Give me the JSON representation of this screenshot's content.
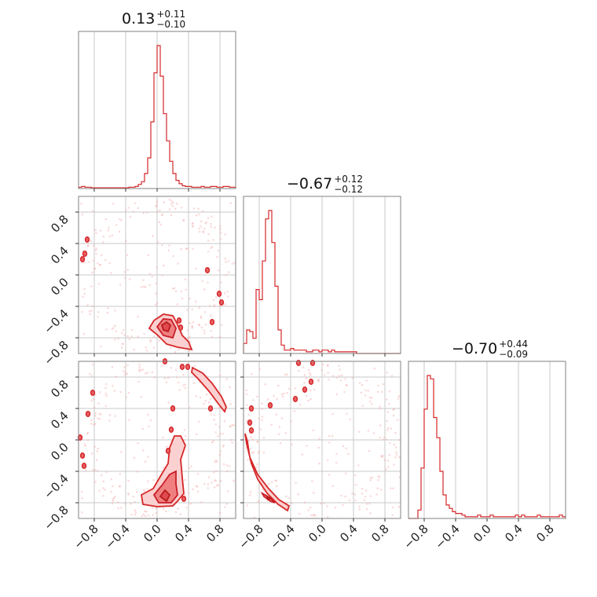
{
  "chart_data": {
    "type": "corner",
    "color": "#d62728",
    "parameters": [
      {
        "title_value": "0.13",
        "title_plus": "+0.11",
        "title_minus": "−0.10",
        "range": [
          -1.0,
          1.0
        ]
      },
      {
        "title_value": "−0.67",
        "title_plus": "+0.12",
        "title_minus": "−0.12",
        "range": [
          -1.0,
          1.0
        ]
      },
      {
        "title_value": "−0.70",
        "title_plus": "+0.44",
        "title_minus": "−0.09",
        "range": [
          -1.0,
          1.0
        ]
      }
    ],
    "tick_values": [
      -0.8,
      -0.4,
      0.0,
      0.4,
      0.8
    ],
    "tick_labels": [
      "−0.8",
      "−0.4",
      "0.0",
      "0.4",
      "0.8"
    ],
    "histograms": [
      {
        "param": 0,
        "bin_edges_start": -1.0,
        "bin_width": 0.04,
        "counts": [
          2,
          3,
          2,
          2,
          1,
          1,
          1,
          1,
          1,
          1,
          1,
          1,
          1,
          1,
          1,
          1,
          2,
          2,
          3,
          6,
          10,
          22,
          45,
          98,
          170,
          210,
          165,
          110,
          70,
          40,
          22,
          12,
          7,
          4,
          3,
          3,
          2,
          2,
          2,
          3,
          2,
          2,
          3,
          3,
          2,
          2,
          3,
          3,
          2,
          2
        ]
      },
      {
        "param": 1,
        "bin_edges_start": -1.0,
        "bin_width": 0.04,
        "counts": [
          6,
          14,
          13,
          9,
          38,
          32,
          55,
          80,
          85,
          66,
          40,
          14,
          5,
          2,
          2,
          3,
          2,
          2,
          2,
          2,
          1,
          1,
          2,
          2,
          1,
          2,
          2,
          1,
          2,
          1,
          1,
          1,
          1,
          1,
          1,
          1,
          0,
          0,
          0,
          0,
          0,
          0,
          0,
          0,
          0,
          0,
          0,
          0,
          0,
          0
        ]
      },
      {
        "param": 2,
        "bin_edges_start": -1.0,
        "bin_width": 0.04,
        "counts": [
          0,
          0,
          0,
          5,
          30,
          65,
          85,
          83,
          60,
          48,
          28,
          14,
          8,
          6,
          4,
          3,
          3,
          2,
          1,
          1,
          1,
          1,
          2,
          1,
          1,
          1,
          2,
          1,
          1,
          1,
          1,
          1,
          1,
          1,
          2,
          1,
          2,
          1,
          1,
          1,
          1,
          2,
          1,
          1,
          1,
          1,
          1,
          1,
          2,
          1
        ]
      }
    ],
    "contour_panels": [
      {
        "x_param": 0,
        "y_param": 1,
        "outer": [
          [
            -0.1,
            -0.68
          ],
          [
            -0.04,
            -0.58
          ],
          [
            0.08,
            -0.5
          ],
          [
            0.2,
            -0.52
          ],
          [
            0.26,
            -0.63
          ],
          [
            0.32,
            -0.77
          ],
          [
            0.4,
            -0.85
          ],
          [
            0.44,
            -0.95
          ],
          [
            0.26,
            -0.92
          ],
          [
            0.12,
            -0.88
          ],
          [
            0.0,
            -0.76
          ]
        ],
        "middle": [
          [
            0.0,
            -0.66
          ],
          [
            0.08,
            -0.56
          ],
          [
            0.18,
            -0.57
          ],
          [
            0.24,
            -0.68
          ],
          [
            0.2,
            -0.8
          ],
          [
            0.08,
            -0.77
          ]
        ],
        "inner": [
          [
            0.06,
            -0.64
          ],
          [
            0.12,
            -0.6
          ],
          [
            0.17,
            -0.64
          ],
          [
            0.14,
            -0.72
          ],
          [
            0.08,
            -0.7
          ]
        ],
        "islands": [
          [
            -0.92,
            0.27
          ],
          [
            -0.95,
            0.2
          ],
          [
            -0.89,
            0.45
          ],
          [
            0.28,
            -0.58
          ],
          [
            0.3,
            -0.67
          ],
          [
            0.64,
            0.06
          ],
          [
            0.7,
            -0.6
          ],
          [
            0.79,
            -0.24
          ],
          [
            0.82,
            -0.35
          ]
        ]
      },
      {
        "x_param": 0,
        "y_param": 2,
        "outer": [
          [
            -0.2,
            -0.7
          ],
          [
            -0.05,
            -0.62
          ],
          [
            0.05,
            -0.45
          ],
          [
            0.14,
            -0.3
          ],
          [
            0.16,
            -0.1
          ],
          [
            0.22,
            0.05
          ],
          [
            0.3,
            0.05
          ],
          [
            0.36,
            -0.07
          ],
          [
            0.3,
            -0.25
          ],
          [
            0.32,
            -0.48
          ],
          [
            0.34,
            -0.68
          ],
          [
            0.26,
            -0.78
          ],
          [
            0.2,
            -0.84
          ],
          [
            0.0,
            -0.85
          ],
          [
            -0.18,
            -0.82
          ]
        ],
        "middle": [
          [
            -0.04,
            -0.7
          ],
          [
            0.06,
            -0.58
          ],
          [
            0.16,
            -0.44
          ],
          [
            0.24,
            -0.4
          ],
          [
            0.24,
            -0.56
          ],
          [
            0.26,
            -0.7
          ],
          [
            0.18,
            -0.8
          ],
          [
            0.02,
            -0.8
          ]
        ],
        "inner": [
          [
            0.04,
            -0.72
          ],
          [
            0.1,
            -0.64
          ],
          [
            0.16,
            -0.7
          ],
          [
            0.12,
            -0.78
          ]
        ],
        "ridge": [
          [
            0.45,
            0.92
          ],
          [
            0.58,
            0.85
          ],
          [
            0.7,
            0.72
          ],
          [
            0.82,
            0.55
          ],
          [
            0.88,
            0.42
          ],
          [
            0.86,
            0.36
          ],
          [
            0.78,
            0.46
          ],
          [
            0.66,
            0.62
          ],
          [
            0.52,
            0.78
          ],
          [
            0.44,
            0.86
          ]
        ],
        "islands": [
          [
            -0.82,
            0.6
          ],
          [
            -0.88,
            0.33
          ],
          [
            -0.98,
            0.03
          ],
          [
            -0.95,
            -0.2
          ],
          [
            -0.93,
            -0.33
          ],
          [
            0.14,
            -0.14
          ],
          [
            0.18,
            0.13
          ],
          [
            0.2,
            0.4
          ],
          [
            0.32,
            0.93
          ],
          [
            0.39,
            0.93
          ],
          [
            0.1,
            1.0
          ],
          [
            0.34,
            -0.75
          ],
          [
            0.68,
            0.4
          ]
        ]
      },
      {
        "x_param": 1,
        "y_param": 2,
        "outer": [
          [
            -0.98,
            0.08
          ],
          [
            -0.96,
            -0.05
          ],
          [
            -0.9,
            -0.3
          ],
          [
            -0.82,
            -0.5
          ],
          [
            -0.7,
            -0.68
          ],
          [
            -0.56,
            -0.82
          ],
          [
            -0.44,
            -0.9
          ],
          [
            -0.42,
            -0.84
          ],
          [
            -0.55,
            -0.76
          ],
          [
            -0.68,
            -0.62
          ],
          [
            -0.82,
            -0.44
          ],
          [
            -0.92,
            -0.22
          ],
          [
            -0.95,
            -0.02
          ]
        ],
        "middle": [
          [
            -0.76,
            -0.68
          ],
          [
            -0.66,
            -0.74
          ],
          [
            -0.6,
            -0.8
          ],
          [
            -0.66,
            -0.78
          ],
          [
            -0.74,
            -0.72
          ]
        ],
        "inner": [
          [
            -0.7,
            -0.72
          ],
          [
            -0.66,
            -0.75
          ],
          [
            -0.69,
            -0.76
          ]
        ],
        "islands": [
          [
            -0.9,
            0.4
          ],
          [
            -0.92,
            0.22
          ],
          [
            -0.9,
            0.12
          ],
          [
            -0.66,
            0.44
          ],
          [
            -0.34,
            0.52
          ],
          [
            -0.22,
            0.64
          ],
          [
            -0.14,
            0.74
          ],
          [
            -0.3,
            0.98
          ],
          [
            -0.12,
            0.98
          ]
        ]
      }
    ]
  }
}
